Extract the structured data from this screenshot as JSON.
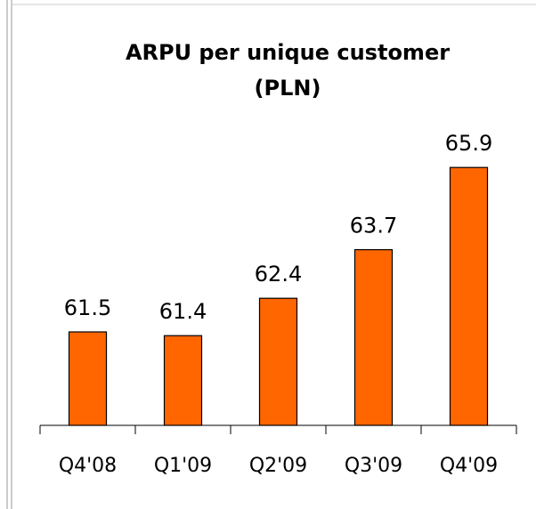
{
  "chart_data": {
    "type": "bar",
    "title": [
      "ARPU per unique customer",
      "(PLN)"
    ],
    "categories": [
      "Q4'08",
      "Q1'09",
      "Q2'09",
      "Q3'09",
      "Q4'09"
    ],
    "values": [
      61.5,
      61.4,
      62.4,
      63.7,
      65.9
    ],
    "color": "#ff6600",
    "ylim": [
      59,
      67
    ]
  }
}
